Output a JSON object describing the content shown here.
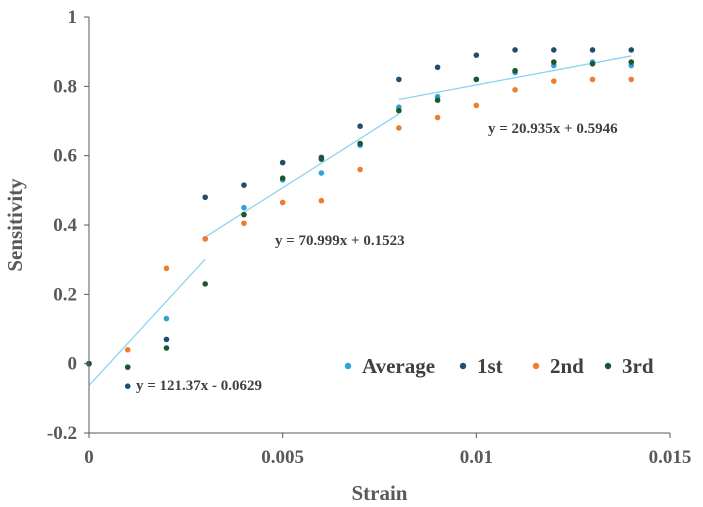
{
  "chart_data": {
    "type": "scatter",
    "title": "",
    "xlabel": "Strain",
    "ylabel": "Sensitivity",
    "xlim": [
      0,
      0.015
    ],
    "ylim": [
      -0.2,
      1
    ],
    "xticks": [
      0,
      0.005,
      0.01,
      0.015
    ],
    "xtick_labels": [
      "0",
      "0.005",
      "0.01",
      "0.015"
    ],
    "yticks": [
      -0.2,
      0,
      0.2,
      0.4,
      0.6,
      0.8,
      1
    ],
    "ytick_labels": [
      "-0.2",
      "0",
      "0.2",
      "0.4",
      "0.6",
      "0.8",
      "1"
    ],
    "grid": false,
    "legend_position": "bottom-right",
    "x": [
      0,
      0.001,
      0.002,
      0.003,
      0.004,
      0.005,
      0.006,
      0.007,
      0.008,
      0.009,
      0.01,
      0.011,
      0.012,
      0.013,
      0.014
    ],
    "series": [
      {
        "name": "Average",
        "color": "#2fa3d8",
        "values": [
          0,
          -0.01,
          0.13,
          0.36,
          0.45,
          0.53,
          0.55,
          0.63,
          0.74,
          0.77,
          0.82,
          0.84,
          0.86,
          0.87,
          0.86
        ]
      },
      {
        "name": "1st",
        "color": "#1f4e6e",
        "values": [
          0,
          -0.065,
          0.07,
          0.48,
          0.515,
          0.58,
          0.595,
          0.685,
          0.82,
          0.855,
          0.89,
          0.905,
          0.905,
          0.905,
          0.905
        ]
      },
      {
        "name": "2nd",
        "color": "#ed7d31",
        "values": [
          0,
          0.04,
          0.275,
          0.36,
          0.405,
          0.465,
          0.47,
          0.56,
          0.68,
          0.71,
          0.745,
          0.79,
          0.815,
          0.82,
          0.82
        ]
      },
      {
        "name": "3rd",
        "color": "#1e5631",
        "values": [
          0,
          -0.01,
          0.045,
          0.23,
          0.43,
          0.535,
          0.59,
          0.635,
          0.73,
          0.76,
          0.82,
          0.845,
          0.87,
          0.865,
          0.87
        ]
      }
    ],
    "trendlines": [
      {
        "label": "y = 121.37x - 0.0629",
        "slope": 121.37,
        "intercept": -0.0629,
        "x_range": [
          0,
          0.003
        ]
      },
      {
        "label": "y = 70.999x + 0.1523",
        "slope": 70.999,
        "intercept": 0.1523,
        "x_range": [
          0.003,
          0.008
        ]
      },
      {
        "label": "y = 20.935x + 0.5946",
        "slope": 20.935,
        "intercept": 0.5946,
        "x_range": [
          0.008,
          0.014
        ]
      }
    ],
    "trendline_color": "#8fd3f0"
  }
}
